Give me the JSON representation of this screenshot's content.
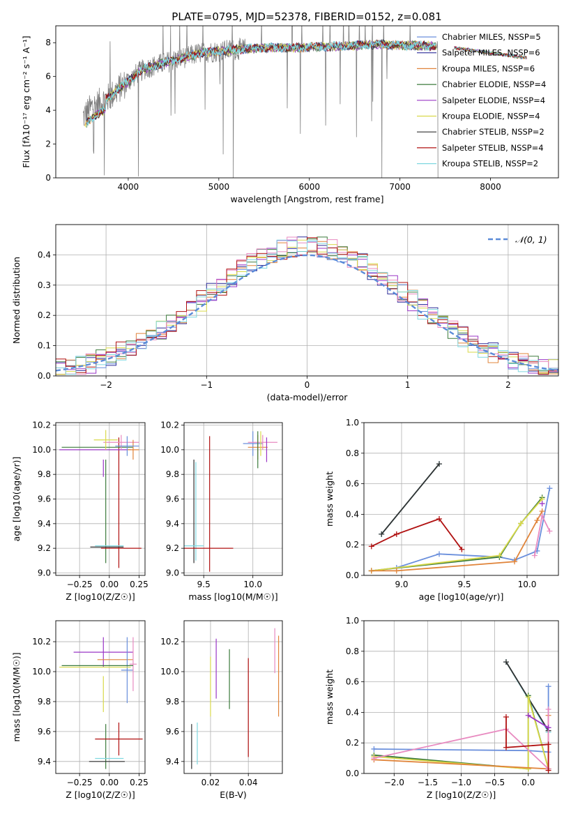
{
  "figure_title": "PLATE=0795, MJD=52378, FIBERID=0152, z=0.081",
  "chart_data": [
    {
      "type": "line",
      "panel": "spectrum",
      "xlabel": "wavelength [Angstrom, rest frame]",
      "ylabel": "Flux [fλ10⁻¹⁷ erg cm⁻² s⁻¹ A⁻¹]",
      "xlim": [
        3200,
        8750
      ],
      "ylim": [
        0,
        9
      ],
      "xticks": [
        4000,
        5000,
        6000,
        7000,
        8000
      ],
      "yticks": [
        0,
        2,
        4,
        6,
        8
      ],
      "grid": false,
      "legend_position": "right",
      "continuum_points": [
        [
          3500,
          3.6
        ],
        [
          3600,
          4.2
        ],
        [
          3700,
          4.5
        ],
        [
          3800,
          4.8
        ],
        [
          3900,
          5.3
        ],
        [
          4000,
          5.7
        ],
        [
          4100,
          6.2
        ],
        [
          4200,
          6.5
        ],
        [
          4400,
          6.8
        ],
        [
          4600,
          7.1
        ],
        [
          4800,
          7.4
        ],
        [
          5000,
          7.5
        ],
        [
          5200,
          7.6
        ],
        [
          5500,
          7.7
        ],
        [
          5800,
          7.7
        ],
        [
          6100,
          7.75
        ],
        [
          6400,
          7.8
        ],
        [
          6700,
          7.9
        ],
        [
          7000,
          7.85
        ],
        [
          7400,
          7.8
        ]
      ],
      "series": [
        {
          "name": "Chabrier MILES, N_SSP=5",
          "color": "#6a8fdc"
        },
        {
          "name": "Salpeter MILES, N_SSP=6",
          "color": "#2e2e9a"
        },
        {
          "name": "Kroupa MILES, N_SSP=6",
          "color": "#e0843a"
        },
        {
          "name": "Chabrier ELODIE, N_SSP=4",
          "color": "#3b7a3b"
        },
        {
          "name": "Salpeter ELODIE, N_SSP=4",
          "color": "#9a36c6"
        },
        {
          "name": "Kroupa ELODIE, N_SSP=4",
          "color": "#d9d94a"
        },
        {
          "name": "Chabrier STELIB, N_SSP=2",
          "color": "#303030"
        },
        {
          "name": "Salpeter STELIB, N_SSP=4",
          "color": "#b01010"
        },
        {
          "name": "Kroupa STELIB, N_SSP=2",
          "color": "#7fd8e0"
        }
      ],
      "data_series_color": "#808080"
    },
    {
      "type": "area",
      "panel": "residual_histogram",
      "xlabel": "(data-model)/error",
      "ylabel": "Normed distribution",
      "xlim": [
        -2.5,
        2.5
      ],
      "ylim": [
        0,
        0.5
      ],
      "xticks": [
        -2,
        -1,
        0,
        1,
        2
      ],
      "yticks": [
        0.0,
        0.1,
        0.2,
        0.3,
        0.4
      ],
      "grid": true,
      "legend_position": "top-right",
      "reference_curve": {
        "name": "𝒩(0, 1)",
        "color": "#5b8bd8",
        "style": "dashed"
      },
      "bin_width": 0.1,
      "histogram_peak": 0.44
    },
    {
      "type": "scatter",
      "panel": "age_vs_Z",
      "xlabel": "Z [log10(Z/Z☉)]",
      "ylabel": "age [log10(age/yr)]",
      "xlim": [
        -0.45,
        0.3
      ],
      "ylim": [
        8.98,
        10.22
      ],
      "xticks": [
        -0.25,
        0.0,
        0.25
      ],
      "yticks": [
        9.0,
        9.2,
        9.4,
        9.6,
        9.8,
        10.0,
        10.2
      ],
      "grid": true,
      "errorbars": [
        {
          "x": -0.05,
          "y": 9.85,
          "xerr": 0.0,
          "yerr": 0.07,
          "color": "#9a36c6"
        },
        {
          "x": -0.03,
          "y": 9.5,
          "xerr": 0.0,
          "yerr": 0.42,
          "color": "#3b7a3b"
        },
        {
          "x": 0.08,
          "y": 9.57,
          "xerr": 0.0,
          "yerr": 0.53,
          "color": "#b01010"
        },
        {
          "x": -0.1,
          "y": 10.02,
          "xerr": 0.3,
          "yerr": 0.0,
          "color": "#3b7a3b"
        },
        {
          "x": -0.12,
          "y": 10.0,
          "xerr": 0.3,
          "yerr": 0.0,
          "color": "#9a36c6"
        },
        {
          "x": 0.1,
          "y": 10.06,
          "xerr": 0.15,
          "yerr": 0.06,
          "color": "#e88ac0"
        },
        {
          "x": 0.2,
          "y": 10.0,
          "xerr": 0.05,
          "yerr": 0.08,
          "color": "#e0843a"
        },
        {
          "x": 0.15,
          "y": 10.03,
          "xerr": 0.1,
          "yerr": 0.08,
          "color": "#6a8fdc"
        },
        {
          "x": -0.03,
          "y": 10.08,
          "xerr": 0.1,
          "yerr": 0.08,
          "color": "#d9d94a"
        },
        {
          "x": 0.0,
          "y": 9.22,
          "xerr": 0.12,
          "yerr": 0.0,
          "color": "#7fd8e0"
        },
        {
          "x": 0.1,
          "y": 9.2,
          "xerr": 0.17,
          "yerr": 0.0,
          "color": "#b01010"
        },
        {
          "x": -0.02,
          "y": 9.21,
          "xerr": 0.14,
          "yerr": 0.0,
          "color": "#303030"
        }
      ]
    },
    {
      "type": "scatter",
      "panel": "age_vs_mass",
      "xlabel": "mass [log10(M/M☉)]",
      "ylabel": "",
      "xlim": [
        9.3,
        10.3
      ],
      "ylim": [
        8.98,
        10.22
      ],
      "xticks": [
        9.5,
        10.0
      ],
      "yticks": [
        9.0,
        9.2,
        9.4,
        9.6,
        9.8,
        10.0,
        10.2
      ],
      "grid": true,
      "errorbars": [
        {
          "x": 9.4,
          "y": 9.5,
          "xerr": 0.0,
          "yerr": 0.42,
          "color": "#303030"
        },
        {
          "x": 9.42,
          "y": 9.5,
          "xerr": 0.0,
          "yerr": 0.4,
          "color": "#7fd8e0"
        },
        {
          "x": 9.56,
          "y": 9.56,
          "xerr": 0.0,
          "yerr": 0.55,
          "color": "#b01010"
        },
        {
          "x": 9.55,
          "y": 9.2,
          "xerr": 0.25,
          "yerr": 0.0,
          "color": "#b01010"
        },
        {
          "x": 9.4,
          "y": 9.22,
          "xerr": 0.1,
          "yerr": 0.0,
          "color": "#7fd8e0"
        },
        {
          "x": 10.0,
          "y": 10.05,
          "xerr": 0.1,
          "yerr": 0.1,
          "color": "#6a8fdc"
        },
        {
          "x": 10.05,
          "y": 10.02,
          "xerr": 0.1,
          "yerr": 0.1,
          "color": "#e0843a"
        },
        {
          "x": 10.1,
          "y": 10.06,
          "xerr": 0.15,
          "yerr": 0.06,
          "color": "#e88ac0"
        },
        {
          "x": 10.14,
          "y": 10.0,
          "xerr": 0.0,
          "yerr": 0.1,
          "color": "#9a36c6"
        },
        {
          "x": 10.05,
          "y": 10.0,
          "xerr": 0.0,
          "yerr": 0.15,
          "color": "#3b7a3b"
        },
        {
          "x": 10.08,
          "y": 10.05,
          "xerr": 0.0,
          "yerr": 0.1,
          "color": "#d9d94a"
        }
      ]
    },
    {
      "type": "line",
      "panel": "mass_weight_vs_age",
      "xlabel": "age [log10(age/yr)]",
      "ylabel": "mass weight",
      "xlim": [
        8.7,
        10.25
      ],
      "ylim": [
        0,
        1
      ],
      "xticks": [
        9.0,
        9.5,
        10.0
      ],
      "yticks": [
        0.0,
        0.2,
        0.4,
        0.6,
        0.8,
        1.0
      ],
      "grid": true,
      "series": [
        {
          "color": "#7fd8e0",
          "x": [
            8.84,
            9.3
          ],
          "y": [
            0.27,
            0.73
          ]
        },
        {
          "color": "#303030",
          "x": [
            8.84,
            9.3
          ],
          "y": [
            0.27,
            0.73
          ]
        },
        {
          "color": "#b01010",
          "x": [
            8.76,
            8.96,
            9.3,
            9.48
          ],
          "y": [
            0.19,
            0.27,
            0.37,
            0.17
          ]
        },
        {
          "color": "#6a8fdc",
          "x": [
            8.76,
            8.96,
            9.3,
            9.78,
            9.9,
            10.08,
            10.18
          ],
          "y": [
            0.03,
            0.05,
            0.14,
            0.12,
            0.1,
            0.16,
            0.57
          ]
        },
        {
          "color": "#3b7a3b",
          "x": [
            8.76,
            9.78,
            9.95,
            10.12
          ],
          "y": [
            0.03,
            0.12,
            0.34,
            0.51
          ]
        },
        {
          "color": "#d9d94a",
          "x": [
            8.76,
            9.78,
            9.95,
            10.12
          ],
          "y": [
            0.03,
            0.13,
            0.34,
            0.5
          ]
        },
        {
          "color": "#e0843a",
          "x": [
            8.76,
            8.96,
            9.9,
            10.08,
            10.12
          ],
          "y": [
            0.03,
            0.03,
            0.09,
            0.36,
            0.42
          ]
        },
        {
          "color": "#9a36c6",
          "x": [
            10.12
          ],
          "y": [
            0.47
          ]
        },
        {
          "color": "#e88ac0",
          "x": [
            10.06,
            10.12,
            10.18
          ],
          "y": [
            0.13,
            0.39,
            0.29
          ]
        }
      ]
    },
    {
      "type": "scatter",
      "panel": "mass_vs_Z",
      "xlabel": "Z [log10(Z/Z☉)]",
      "ylabel": "mass [log10(M/M☉)]",
      "xlim": [
        -0.45,
        0.3
      ],
      "ylim": [
        9.32,
        10.34
      ],
      "xticks": [
        -0.25,
        0.0,
        0.25
      ],
      "yticks": [
        9.4,
        9.6,
        9.8,
        10.0,
        10.2
      ],
      "grid": true,
      "errorbars": [
        {
          "x": -0.05,
          "y": 10.13,
          "xerr": 0.25,
          "yerr": 0.1,
          "color": "#9a36c6"
        },
        {
          "x": 0.05,
          "y": 10.08,
          "xerr": 0.15,
          "yerr": 0.0,
          "color": "#e0843a"
        },
        {
          "x": 0.15,
          "y": 10.01,
          "xerr": 0.05,
          "yerr": 0.22,
          "color": "#6a8fdc"
        },
        {
          "x": 0.2,
          "y": 10.05,
          "xerr": 0.03,
          "yerr": 0.18,
          "color": "#e88ac0"
        },
        {
          "x": -0.1,
          "y": 10.04,
          "xerr": 0.3,
          "yerr": 0.0,
          "color": "#3b7a3b"
        },
        {
          "x": -0.12,
          "y": 10.03,
          "xerr": 0.3,
          "yerr": 0.0,
          "color": "#d9d94a"
        },
        {
          "x": -0.05,
          "y": 9.85,
          "xerr": 0.0,
          "yerr": 0.12,
          "color": "#d9d94a"
        },
        {
          "x": -0.03,
          "y": 9.5,
          "xerr": 0.0,
          "yerr": 0.15,
          "color": "#3b7a3b"
        },
        {
          "x": 0.08,
          "y": 9.55,
          "xerr": 0.2,
          "yerr": 0.11,
          "color": "#b01010"
        },
        {
          "x": 0.0,
          "y": 9.42,
          "xerr": 0.12,
          "yerr": 0.0,
          "color": "#7fd8e0"
        },
        {
          "x": -0.02,
          "y": 9.4,
          "xerr": 0.15,
          "yerr": 0.0,
          "color": "#303030"
        }
      ]
    },
    {
      "type": "scatter",
      "panel": "mass_vs_EBV",
      "xlabel": "E(B-V)",
      "ylabel": "",
      "xlim": [
        0.006,
        0.058
      ],
      "ylim": [
        9.32,
        10.34
      ],
      "xticks": [
        0.02,
        0.04
      ],
      "yticks": [
        9.4,
        9.6,
        9.8,
        10.0,
        10.2
      ],
      "grid": true,
      "errorbars": [
        {
          "x": 0.01,
          "y": 9.5,
          "xerr": 0.0,
          "yerr": 0.15,
          "color": "#303030"
        },
        {
          "x": 0.013,
          "y": 9.52,
          "xerr": 0.0,
          "yerr": 0.14,
          "color": "#7fd8e0"
        },
        {
          "x": 0.02,
          "y": 9.9,
          "xerr": 0.0,
          "yerr": 0.2,
          "color": "#d9d94a"
        },
        {
          "x": 0.023,
          "y": 10.02,
          "xerr": 0.0,
          "yerr": 0.2,
          "color": "#9a36c6"
        },
        {
          "x": 0.03,
          "y": 9.95,
          "xerr": 0.0,
          "yerr": 0.2,
          "color": "#3b7a3b"
        },
        {
          "x": 0.04,
          "y": 9.76,
          "xerr": 0.0,
          "yerr": 0.33,
          "color": "#b01010"
        },
        {
          "x": 0.054,
          "y": 10.14,
          "xerr": 0.0,
          "yerr": 0.15,
          "color": "#e88ac0"
        },
        {
          "x": 0.056,
          "y": 9.97,
          "xerr": 0.0,
          "yerr": 0.27,
          "color": "#e0843a"
        }
      ]
    },
    {
      "type": "line",
      "panel": "mass_weight_vs_Z",
      "xlabel": "Z [log10(Z/Z☉)]",
      "ylabel": "mass weight",
      "xlim": [
        -2.45,
        0.45
      ],
      "ylim": [
        0,
        1
      ],
      "xticks": [
        -2.0,
        -1.5,
        -1.0,
        -0.5,
        0.0
      ],
      "yticks": [
        0.0,
        0.2,
        0.4,
        0.6,
        0.8,
        1.0
      ],
      "grid": true,
      "series": [
        {
          "color": "#7fd8e0",
          "x": [
            -0.33,
            0.3
          ],
          "y": [
            0.73,
            0.27
          ]
        },
        {
          "color": "#303030",
          "x": [
            -0.33,
            0.3
          ],
          "y": [
            0.73,
            0.28
          ]
        },
        {
          "color": "#6a8fdc",
          "x": [
            -2.3,
            0.0,
            0.3,
            0.3
          ],
          "y": [
            0.16,
            0.15,
            0.14,
            0.57
          ]
        },
        {
          "color": "#3b7a3b",
          "x": [
            -2.3,
            0.0,
            0.0,
            0.3
          ],
          "y": [
            0.12,
            0.03,
            0.51,
            0.03
          ]
        },
        {
          "color": "#d9d94a",
          "x": [
            -2.3,
            0.0,
            0.0,
            0.3
          ],
          "y": [
            0.11,
            0.03,
            0.5,
            0.03
          ]
        },
        {
          "color": "#e0843a",
          "x": [
            -2.3,
            0.3,
            0.3
          ],
          "y": [
            0.09,
            0.03,
            0.38
          ]
        },
        {
          "color": "#e88ac0",
          "x": [
            -2.3,
            -0.33,
            0.3,
            0.3
          ],
          "y": [
            0.1,
            0.29,
            0.03,
            0.42
          ]
        },
        {
          "color": "#b01010",
          "x": [
            -0.33,
            -0.33,
            0.3,
            0.3
          ],
          "y": [
            0.37,
            0.17,
            0.19,
            0.02
          ]
        },
        {
          "color": "#9a36c6",
          "x": [
            0.0,
            0.3
          ],
          "y": [
            0.38,
            0.3
          ]
        }
      ]
    }
  ]
}
